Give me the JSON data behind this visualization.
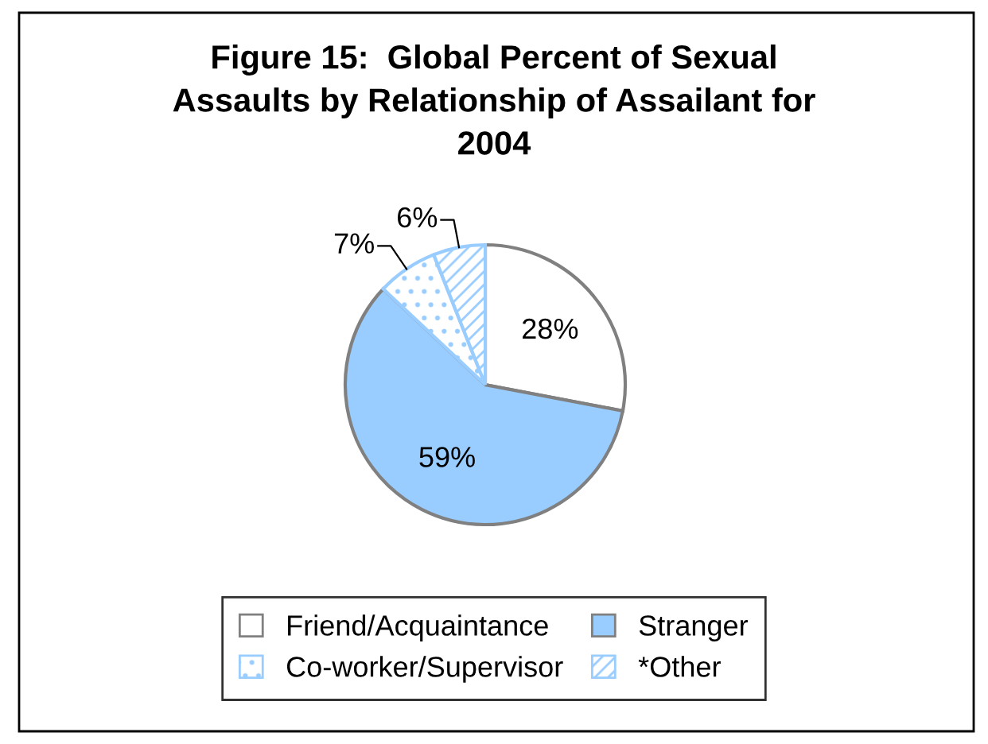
{
  "chart_data": {
    "type": "pie",
    "title": "Figure 15:  Global Percent of Sexual\nAssaults by Relationship of Assailant for\n2004",
    "categories": [
      "Friend/Acquaintance",
      "Stranger",
      "Co-worker/Supervisor",
      "*Other"
    ],
    "values": [
      28,
      59,
      7,
      6
    ],
    "value_labels": [
      "28%",
      "59%",
      "7%",
      "6%"
    ],
    "colors": [
      "#ffffff",
      "#99ccff",
      "#99ccff",
      "#99ccff"
    ],
    "legend": "bottom"
  }
}
